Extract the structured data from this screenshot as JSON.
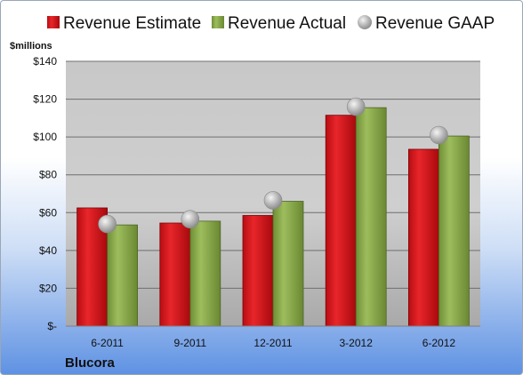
{
  "chart_data": {
    "type": "bar",
    "company": "Blucora",
    "unit_label": "$millions",
    "categories": [
      "6-2011",
      "9-2011",
      "12-2011",
      "3-2012",
      "6-2012"
    ],
    "series": [
      {
        "name": "Revenue Estimate",
        "kind": "bar",
        "color": "#d9151b",
        "values": [
          62.5,
          54.5,
          58.5,
          111.5,
          93.5
        ]
      },
      {
        "name": "Revenue Actual",
        "kind": "bar",
        "color": "#8cad4f",
        "values": [
          53.5,
          55.5,
          66.0,
          115.5,
          100.5
        ]
      },
      {
        "name": "Revenue GAAP",
        "kind": "marker",
        "color": "#b8b8b8",
        "values": [
          54.0,
          56.5,
          66.5,
          116.0,
          101.0
        ]
      }
    ],
    "yticks": [
      "$-",
      "$20",
      "$40",
      "$60",
      "$80",
      "$100",
      "$120",
      "$140"
    ],
    "ylim": [
      0,
      140
    ],
    "grid": true,
    "legend_position": "top"
  }
}
